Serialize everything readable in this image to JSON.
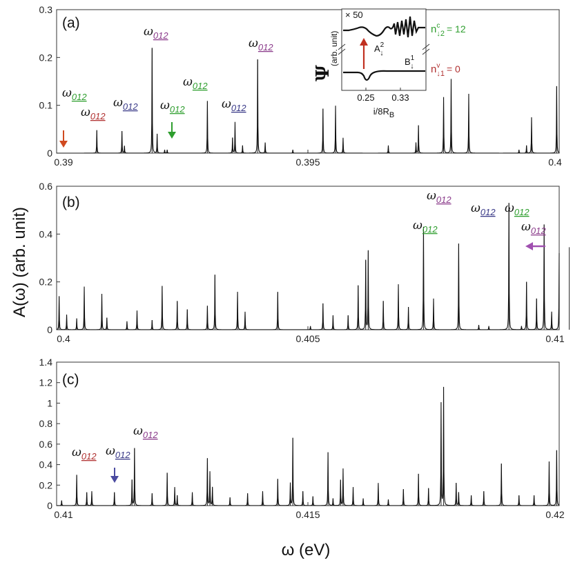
{
  "chart_data": {
    "type": "line",
    "shared_ylabel": "A(ω)  (arb. unit)",
    "shared_xlabel": "ω (eV)",
    "panels": [
      {
        "label": "(a)",
        "xlim": [
          0.39,
          0.4
        ],
        "ylim": [
          0,
          0.3
        ],
        "xticks": [
          "0.39",
          "0.395",
          "0.4"
        ],
        "yticks": [
          "0",
          "0.1",
          "0.2",
          "0.3"
        ],
        "peaks": [
          [
            0.3908,
            0.048
          ],
          [
            0.3913,
            0.046
          ],
          [
            0.39135,
            0.015
          ],
          [
            0.3919,
            0.22
          ],
          [
            0.392,
            0.04
          ],
          [
            0.39215,
            0.007
          ],
          [
            0.3922,
            0.007
          ],
          [
            0.393,
            0.109
          ],
          [
            0.3935,
            0.032
          ],
          [
            0.39355,
            0.065
          ],
          [
            0.3937,
            0.016
          ],
          [
            0.394,
            0.196
          ],
          [
            0.39415,
            0.022
          ],
          [
            0.3947,
            0.007
          ],
          [
            0.3953,
            0.093
          ],
          [
            0.39555,
            0.099
          ],
          [
            0.3957,
            0.032
          ],
          [
            0.3966,
            0.016
          ],
          [
            0.39715,
            0.022
          ],
          [
            0.3972,
            0.058
          ],
          [
            0.3977,
            0.117
          ],
          [
            0.39785,
            0.155
          ],
          [
            0.3982,
            0.124
          ],
          [
            0.3992,
            0.007
          ],
          [
            0.39935,
            0.016
          ],
          [
            0.39945,
            0.075
          ],
          [
            0.39995,
            0.14
          ]
        ],
        "annotations": [
          {
            "text": "ω",
            "sub": "012",
            "color": "#2e9e2e"
          },
          {
            "text": "ω",
            "sub": "012",
            "color": "#b03030"
          },
          {
            "text": "ω",
            "sub": "012",
            "color": "#3a3a88"
          },
          {
            "text": "ω",
            "sub": "012",
            "color": "#8a3a8a"
          },
          {
            "text": "ω",
            "sub": "012",
            "color": "#2e9e2e"
          },
          {
            "text": "ω",
            "sub": "012",
            "color": "#2e9e2e"
          },
          {
            "text": "ω",
            "sub": "012",
            "color": "#3a3a88"
          },
          {
            "text": "ω",
            "sub": "012",
            "color": "#8a3a8a"
          }
        ],
        "arrows": [
          {
            "x": 0.3901,
            "color": "#d04a20",
            "direction": "down"
          },
          {
            "x": 0.3922,
            "color": "#2e9e2e",
            "direction": "down"
          }
        ],
        "inset": {
          "ylabel": "Ψ",
          "ylabel_unit": "(arb. unit)",
          "xlabel": "i/8R",
          "xlabel_sub": "B",
          "xticks": [
            "0.25",
            "0.33"
          ],
          "scale_label": "× 50",
          "state_upper": {
            "text": "n",
            "sup": "c",
            "sub": "↓2",
            "value": "= 12",
            "color": "#2e9e2e"
          },
          "state_lower": {
            "text": "n",
            "sup": "v",
            "sub": "↓1",
            "value": "= 0",
            "color": "#b03030"
          },
          "label_A": {
            "text": "A",
            "sup": "2",
            "sub": "↓"
          },
          "label_B": {
            "text": "B",
            "sup": "1",
            "sub": "↓"
          },
          "arrow_color": "#c03020"
        }
      },
      {
        "label": "(b)",
        "xlim": [
          0.4,
          0.41
        ],
        "ylim": [
          0,
          0.6
        ],
        "xticks": [
          "0.4",
          "0.405",
          "0.41"
        ],
        "yticks": [
          "0",
          "0.2",
          "0.4",
          "0.6"
        ],
        "peaks": [
          [
            0.40005,
            0.14
          ],
          [
            0.4002,
            0.063
          ],
          [
            0.4004,
            0.047
          ],
          [
            0.40055,
            0.18
          ],
          [
            0.4009,
            0.15
          ],
          [
            0.401,
            0.05
          ],
          [
            0.4014,
            0.035
          ],
          [
            0.4016,
            0.08
          ],
          [
            0.4019,
            0.04
          ],
          [
            0.4021,
            0.183
          ],
          [
            0.4024,
            0.12
          ],
          [
            0.4026,
            0.085
          ],
          [
            0.403,
            0.1
          ],
          [
            0.40315,
            0.23
          ],
          [
            0.4036,
            0.158
          ],
          [
            0.40375,
            0.075
          ],
          [
            0.4044,
            0.158
          ],
          [
            0.40505,
            0.015
          ],
          [
            0.4053,
            0.11
          ],
          [
            0.4055,
            0.06
          ],
          [
            0.4058,
            0.06
          ],
          [
            0.406,
            0.185
          ],
          [
            0.40615,
            0.29
          ],
          [
            0.4062,
            0.33
          ],
          [
            0.4065,
            0.12
          ],
          [
            0.4068,
            0.19
          ],
          [
            0.407,
            0.095
          ],
          [
            0.4073,
            0.43
          ],
          [
            0.4075,
            0.13
          ],
          [
            0.408,
            0.36
          ],
          [
            0.4084,
            0.02
          ],
          [
            0.4086,
            0.015
          ],
          [
            0.409,
            0.53
          ],
          [
            0.40925,
            0.015
          ],
          [
            0.40935,
            0.2
          ],
          [
            0.40955,
            0.13
          ],
          [
            0.4097,
            0.44
          ],
          [
            0.40985,
            0.075
          ],
          [
            0.41,
            0.32
          ],
          [
            0.4102,
            0.345
          ]
        ],
        "annotations": [
          {
            "text": "ω",
            "sub": "012",
            "color": "#2e9e2e"
          },
          {
            "text": "ω",
            "sub": "012",
            "color": "#8a3a8a"
          },
          {
            "text": "ω",
            "sub": "012",
            "color": "#3a3a88"
          },
          {
            "text": "ω",
            "sub": "012",
            "color": "#2e9e2e"
          },
          {
            "text": "ω",
            "sub": "012",
            "color": "#8a3a8a"
          }
        ],
        "arrows": [
          {
            "x": 0.4095,
            "color": "#a050b0",
            "direction": "left"
          }
        ]
      },
      {
        "label": "(c)",
        "xlim": [
          0.41,
          0.42
        ],
        "ylim": [
          0,
          1.4
        ],
        "xticks": [
          "0.41",
          "0.415",
          "0.42"
        ],
        "yticks": [
          "0",
          "0.2",
          "0.4",
          "0.6",
          "0.8",
          "1",
          "1.2",
          "1.4"
        ],
        "peaks": [
          [
            0.4101,
            0.05
          ],
          [
            0.4104,
            0.3
          ],
          [
            0.4106,
            0.13
          ],
          [
            0.4107,
            0.14
          ],
          [
            0.41115,
            0.13
          ],
          [
            0.4115,
            0.25
          ],
          [
            0.41155,
            0.56
          ],
          [
            0.4119,
            0.12
          ],
          [
            0.4122,
            0.32
          ],
          [
            0.41235,
            0.18
          ],
          [
            0.4124,
            0.1
          ],
          [
            0.4127,
            0.13
          ],
          [
            0.413,
            0.46
          ],
          [
            0.41305,
            0.33
          ],
          [
            0.4131,
            0.18
          ],
          [
            0.41345,
            0.08
          ],
          [
            0.4138,
            0.12
          ],
          [
            0.4141,
            0.14
          ],
          [
            0.4144,
            0.26
          ],
          [
            0.41465,
            0.22
          ],
          [
            0.4147,
            0.66
          ],
          [
            0.4149,
            0.14
          ],
          [
            0.4151,
            0.09
          ],
          [
            0.4154,
            0.52
          ],
          [
            0.4155,
            0.07
          ],
          [
            0.41565,
            0.25
          ],
          [
            0.4157,
            0.36
          ],
          [
            0.4159,
            0.18
          ],
          [
            0.4161,
            0.07
          ],
          [
            0.4164,
            0.22
          ],
          [
            0.4166,
            0.06
          ],
          [
            0.4169,
            0.16
          ],
          [
            0.4172,
            0.31
          ],
          [
            0.4174,
            0.17
          ],
          [
            0.41765,
            1.0
          ],
          [
            0.4177,
            1.15
          ],
          [
            0.41795,
            0.22
          ],
          [
            0.418,
            0.13
          ],
          [
            0.41825,
            0.1
          ],
          [
            0.4185,
            0.14
          ],
          [
            0.41885,
            0.41
          ],
          [
            0.4192,
            0.1
          ],
          [
            0.4195,
            0.1
          ],
          [
            0.4198,
            0.43
          ],
          [
            0.41995,
            0.54
          ]
        ],
        "annotations": [
          {
            "text": "ω",
            "sub": "012",
            "color": "#b03030"
          },
          {
            "text": "ω",
            "sub": "012",
            "color": "#3a3a88"
          },
          {
            "text": "ω",
            "sub": "012",
            "color": "#8a3a8a"
          }
        ],
        "arrows": [
          {
            "x": 0.41115,
            "color": "#4a4aa0",
            "direction": "down"
          }
        ]
      }
    ]
  }
}
